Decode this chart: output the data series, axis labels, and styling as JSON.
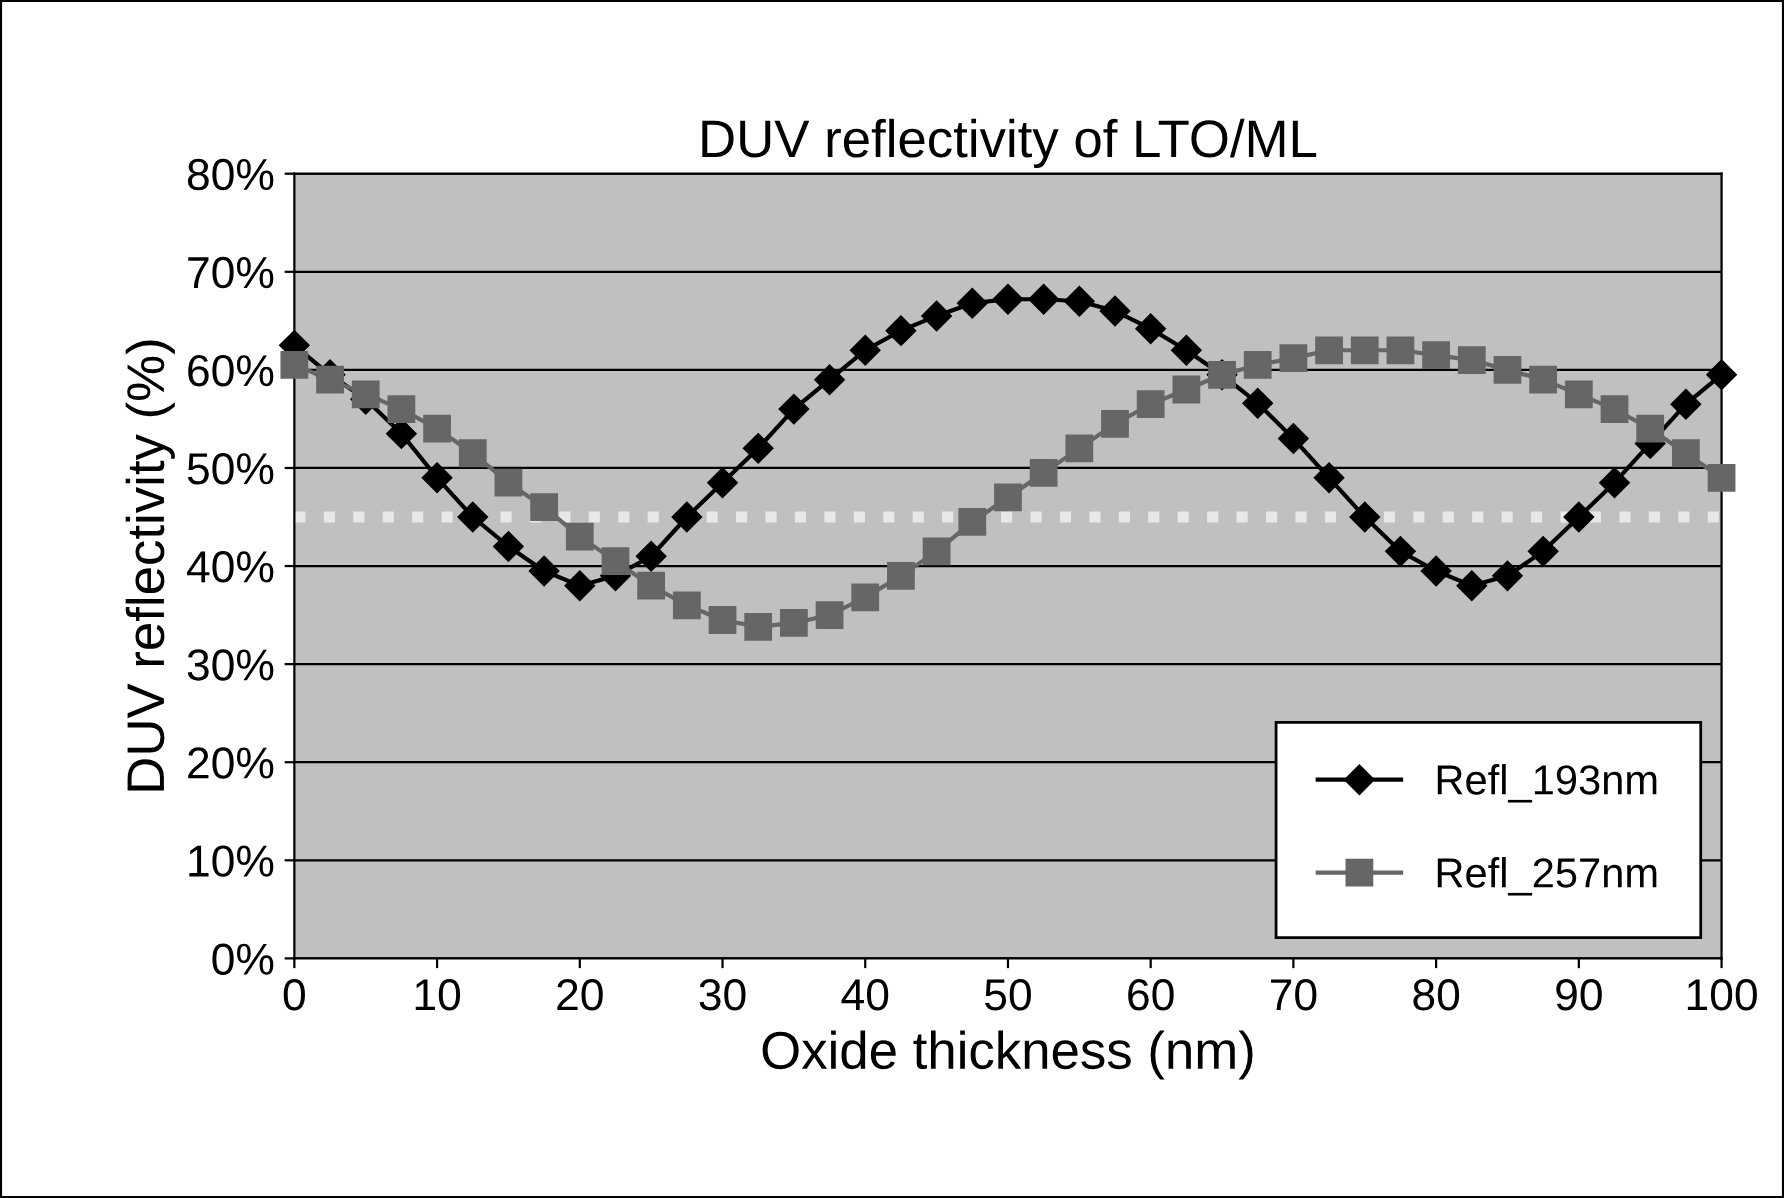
{
  "chart_data": {
    "type": "line",
    "title": "DUV reflectivity of LTO/ML",
    "xlabel": "Oxide thickness (nm)",
    "ylabel": "DUV reflectivity (%)",
    "x": [
      0,
      2.5,
      5,
      7.5,
      10,
      12.5,
      15,
      17.5,
      20,
      22.5,
      25,
      27.5,
      30,
      32.5,
      35,
      37.5,
      40,
      42.5,
      45,
      47.5,
      50,
      52.5,
      55,
      57.5,
      60,
      62.5,
      65,
      67.5,
      70,
      72.5,
      75,
      77.5,
      80,
      82.5,
      85,
      87.5,
      90,
      92.5,
      95,
      97.5,
      100
    ],
    "series": [
      {
        "name": "Refl_193nm",
        "color": "#000000",
        "marker": "diamond",
        "values": [
          62.5,
          59.5,
          57,
          53.5,
          49,
          45,
          42,
          39.5,
          38,
          39,
          41,
          45,
          48.5,
          52,
          56,
          59,
          62,
          64,
          65.5,
          66.8,
          67.2,
          67.2,
          67,
          66,
          64.2,
          62,
          59.5,
          56.6,
          53,
          49,
          45,
          41.5,
          39.5,
          38,
          39,
          41.5,
          45,
          48.5,
          52.5,
          56.5,
          59.5
        ]
      },
      {
        "name": "Refl_257nm",
        "color": "#666666",
        "marker": "square",
        "values": [
          60.5,
          59,
          57.5,
          56,
          54,
          51.5,
          48.5,
          46,
          43,
          40.5,
          38,
          36,
          34.5,
          33.8,
          34.2,
          35,
          36.8,
          39,
          41.5,
          44.5,
          47,
          49.5,
          52,
          54.5,
          56.5,
          58,
          59.5,
          60.5,
          61.2,
          62,
          62,
          62,
          61.5,
          61,
          60,
          59,
          57.5,
          56,
          54,
          51.5,
          49
        ]
      }
    ],
    "xlim": [
      0,
      100
    ],
    "xticks": [
      0,
      10,
      20,
      30,
      40,
      50,
      60,
      70,
      80,
      90,
      100
    ],
    "ylim": [
      0,
      80
    ],
    "yticks": [
      {
        "value": 0,
        "label": "0%"
      },
      {
        "value": 10,
        "label": "10%"
      },
      {
        "value": 20,
        "label": "20%"
      },
      {
        "value": 30,
        "label": "30%"
      },
      {
        "value": 40,
        "label": "40%"
      },
      {
        "value": 50,
        "label": "50%"
      },
      {
        "value": 60,
        "label": "60%"
      },
      {
        "value": 70,
        "label": "70%"
      },
      {
        "value": 80,
        "label": "80%"
      }
    ],
    "ref_lines": [
      {
        "axis": "y",
        "value": 45,
        "color": "#e8e8e8",
        "line_style": "dotted"
      }
    ],
    "grid": "y",
    "legend": "lower right",
    "line_style": "solid"
  }
}
